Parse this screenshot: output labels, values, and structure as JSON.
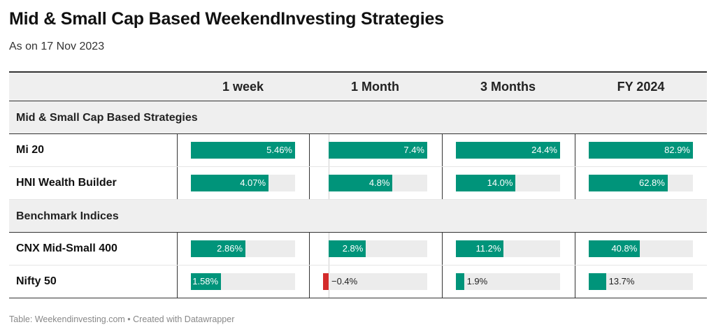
{
  "title": "Mid & Small Cap Based WeekendInvesting Strategies",
  "subtitle": "As on 17 Nov 2023",
  "footer": "Table: Weekendinvesting.com • Created with Datawrapper",
  "colors": {
    "positive": "#00947a",
    "negative": "#d32b2b",
    "track": "#ececec",
    "header_bg": "#efefef"
  },
  "chart_data": {
    "type": "table",
    "columns": [
      "1 week",
      "1 Month",
      "3 Months",
      "FY 2024"
    ],
    "column_max": [
      5.46,
      7.4,
      24.4,
      82.9
    ],
    "value_unit": "%",
    "groups": [
      {
        "name": "Mid & Small Cap Based Strategies",
        "rows": [
          {
            "name": "Mi 20",
            "values": [
              5.46,
              7.4,
              24.4,
              82.9
            ],
            "labels": [
              "5.46%",
              "7.4%",
              "24.4%",
              "82.9%"
            ]
          },
          {
            "name": "HNI Wealth Builder",
            "values": [
              4.07,
              4.8,
              14.0,
              62.8
            ],
            "labels": [
              "4.07%",
              "4.8%",
              "14.0%",
              "62.8%"
            ]
          }
        ]
      },
      {
        "name": "Benchmark Indices",
        "rows": [
          {
            "name": "CNX Mid-Small 400",
            "values": [
              2.86,
              2.8,
              11.2,
              40.8
            ],
            "labels": [
              "2.86%",
              "2.8%",
              "11.2%",
              "40.8%"
            ]
          },
          {
            "name": "Nifty 50",
            "values": [
              1.58,
              -0.4,
              1.9,
              13.7
            ],
            "labels": [
              "1.58%",
              "−0.4%",
              "1.9%",
              "13.7%"
            ]
          }
        ]
      }
    ]
  }
}
